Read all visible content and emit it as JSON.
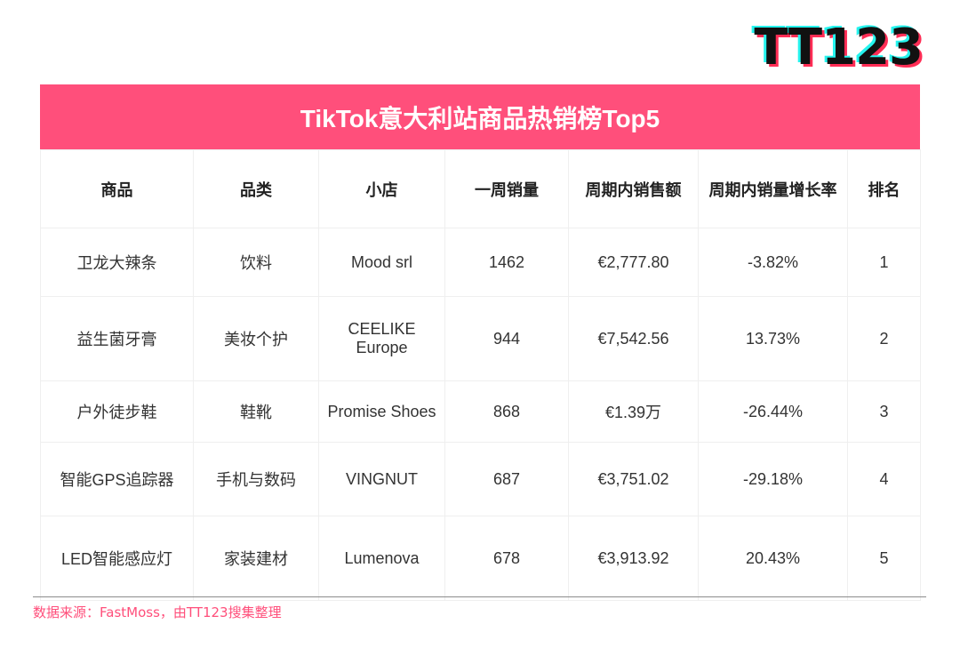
{
  "logo": {
    "text": "TT123"
  },
  "table": {
    "title": "TikTok意大利站商品热销榜Top5",
    "headers": [
      "商品",
      "品类",
      "小店",
      "一周销量",
      "周期内销售额",
      "周期内销量增长率",
      "排名"
    ],
    "rows": [
      [
        "卫龙大辣条",
        "饮料",
        "Mood srl",
        "1462",
        "€2,777.80",
        "-3.82%",
        "1"
      ],
      [
        "益生菌牙膏",
        "美妆个护",
        "CEELIKE Europe",
        "944",
        "€7,542.56",
        "13.73%",
        "2"
      ],
      [
        "户外徒步鞋",
        "鞋靴",
        "Promise Shoes",
        "868",
        "€1.39万",
        "-26.44%",
        "3"
      ],
      [
        "智能GPS追踪器",
        "手机与数码",
        "VINGNUT",
        "687",
        "€3,751.02",
        "-29.18%",
        "4"
      ],
      [
        "LED智能感应灯",
        "家装建材",
        "Lumenova",
        "678",
        "€3,913.92",
        "20.43%",
        "5"
      ]
    ]
  },
  "source": "数据来源：FastMoss，由TT123搜集整理",
  "colors": {
    "accent": "#ff4f7b",
    "negative": "#e85a8a"
  }
}
